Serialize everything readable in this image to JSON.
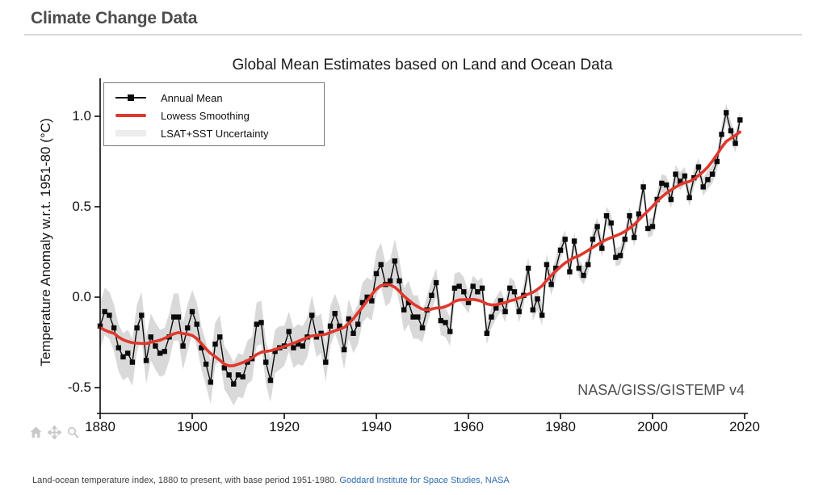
{
  "page": {
    "header_title": "Climate Change Data",
    "footer": {
      "caption": "Land-ocean temperature index, 1880 to present, with base period 1951-1980.",
      "link_text": "Goddard Institute for Space Studies, NASA"
    },
    "toolbar_icons": [
      "home",
      "pan",
      "zoom"
    ],
    "colors": {
      "header_text": "#4c4c4e",
      "divider": "#d9d9d9",
      "footer_text": "#3f3f3f",
      "link": "#2e6cb5",
      "toolbar_icon": "#c9c9c9"
    }
  },
  "chart_data": {
    "type": "line",
    "title": "Global Mean Estimates based on Land and Ocean Data",
    "xlabel": "",
    "ylabel": "Temperature Anomaly w.r.t. 1951-80 (°C)",
    "annotation": "NASA/GISS/GISTEMP v4",
    "legend_position": "top-left",
    "legend": [
      {
        "label": "Annual Mean",
        "type": "line+square-marker",
        "color": "#0a0a0a"
      },
      {
        "label": "Lowess Smoothing",
        "type": "line",
        "color": "#e0382c"
      },
      {
        "label": "LSAT+SST Uncertainty",
        "type": "band",
        "color": "#d9d9d9"
      }
    ],
    "grid": false,
    "xlim": [
      1880,
      2020
    ],
    "ylim": [
      -0.65,
      1.2
    ],
    "x_ticks": [
      1880,
      1900,
      1920,
      1940,
      1960,
      1980,
      2000,
      2020
    ],
    "y_ticks": [
      1.0,
      0.5,
      0.0,
      -0.5
    ],
    "years_start": 1880,
    "annual_mean": [
      -0.16,
      -0.08,
      -0.1,
      -0.17,
      -0.28,
      -0.33,
      -0.31,
      -0.36,
      -0.17,
      -0.1,
      -0.35,
      -0.22,
      -0.27,
      -0.31,
      -0.3,
      -0.22,
      -0.11,
      -0.11,
      -0.27,
      -0.17,
      -0.08,
      -0.15,
      -0.28,
      -0.37,
      -0.47,
      -0.26,
      -0.22,
      -0.39,
      -0.43,
      -0.48,
      -0.43,
      -0.44,
      -0.36,
      -0.34,
      -0.15,
      -0.14,
      -0.36,
      -0.46,
      -0.3,
      -0.28,
      -0.27,
      -0.19,
      -0.28,
      -0.26,
      -0.27,
      -0.22,
      -0.1,
      -0.22,
      -0.2,
      -0.36,
      -0.16,
      -0.09,
      -0.16,
      -0.29,
      -0.12,
      -0.2,
      -0.15,
      -0.03,
      0.0,
      -0.02,
      0.13,
      0.18,
      0.07,
      0.09,
      0.2,
      0.09,
      -0.07,
      -0.03,
      -0.11,
      -0.11,
      -0.17,
      -0.07,
      0.01,
      0.08,
      -0.13,
      -0.14,
      -0.19,
      0.05,
      0.06,
      0.03,
      -0.03,
      0.06,
      0.03,
      0.05,
      -0.2,
      -0.11,
      -0.06,
      -0.02,
      -0.08,
      0.05,
      0.03,
      -0.08,
      0.01,
      0.16,
      -0.07,
      -0.01,
      -0.1,
      0.18,
      0.07,
      0.16,
      0.26,
      0.32,
      0.14,
      0.31,
      0.16,
      0.12,
      0.18,
      0.32,
      0.39,
      0.27,
      0.45,
      0.41,
      0.22,
      0.23,
      0.32,
      0.45,
      0.33,
      0.46,
      0.61,
      0.38,
      0.39,
      0.54,
      0.63,
      0.62,
      0.54,
      0.68,
      0.64,
      0.67,
      0.55,
      0.66,
      0.72,
      0.61,
      0.65,
      0.68,
      0.75,
      0.9,
      1.02,
      0.92,
      0.85,
      0.98
    ],
    "uncertainty_half_width": [
      0.13,
      0.13,
      0.13,
      0.13,
      0.13,
      0.13,
      0.13,
      0.13,
      0.13,
      0.13,
      0.13,
      0.13,
      0.13,
      0.13,
      0.13,
      0.13,
      0.13,
      0.13,
      0.13,
      0.13,
      0.12,
      0.12,
      0.12,
      0.12,
      0.12,
      0.12,
      0.12,
      0.12,
      0.12,
      0.12,
      0.12,
      0.12,
      0.12,
      0.12,
      0.12,
      0.12,
      0.12,
      0.12,
      0.12,
      0.12,
      0.11,
      0.11,
      0.11,
      0.11,
      0.11,
      0.11,
      0.11,
      0.11,
      0.11,
      0.11,
      0.11,
      0.11,
      0.11,
      0.11,
      0.11,
      0.11,
      0.11,
      0.11,
      0.11,
      0.11,
      0.12,
      0.12,
      0.12,
      0.12,
      0.12,
      0.12,
      0.12,
      0.12,
      0.12,
      0.12,
      0.08,
      0.08,
      0.08,
      0.08,
      0.08,
      0.08,
      0.08,
      0.08,
      0.08,
      0.08,
      0.06,
      0.06,
      0.06,
      0.06,
      0.06,
      0.06,
      0.06,
      0.06,
      0.06,
      0.06,
      0.06,
      0.06,
      0.06,
      0.06,
      0.06,
      0.06,
      0.06,
      0.06,
      0.06,
      0.06,
      0.05,
      0.05,
      0.05,
      0.05,
      0.05,
      0.05,
      0.05,
      0.05,
      0.05,
      0.05,
      0.05,
      0.05,
      0.05,
      0.05,
      0.05,
      0.05,
      0.05,
      0.05,
      0.05,
      0.05,
      0.05,
      0.05,
      0.05,
      0.05,
      0.05,
      0.05,
      0.05,
      0.05,
      0.05,
      0.05,
      0.05,
      0.05,
      0.05,
      0.05,
      0.05,
      0.05,
      0.05,
      0.05,
      0.05,
      0.05
    ],
    "lowess_note": "Red curve is a lowess smoothing of annual_mean (rendered as a double 7-year moving average)",
    "colors": {
      "annual": "#0a0a0a",
      "lowess": "#e0382c",
      "band": "#d9d9d9",
      "axis": "#0a0a0a"
    }
  }
}
